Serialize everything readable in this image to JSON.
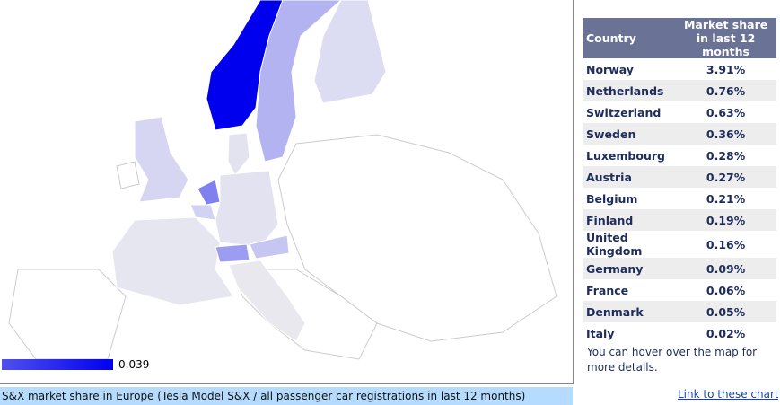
{
  "map": {
    "legend_label": "0.039",
    "caption": "S&X market share in Europe (Tesla Model S&X / all passenger car registrations in last 12 months)"
  },
  "table": {
    "header": [
      "Country",
      "Market share in last 12 months"
    ],
    "rows": [
      [
        "Norway",
        "3.91%"
      ],
      [
        "Netherlands",
        "0.76%"
      ],
      [
        "Switzerland",
        "0.63%"
      ],
      [
        "Sweden",
        "0.36%"
      ],
      [
        "Luxembourg",
        "0.28%"
      ],
      [
        "Austria",
        "0.27%"
      ],
      [
        "Belgium",
        "0.21%"
      ],
      [
        "Finland",
        "0.19%"
      ],
      [
        "United Kingdom",
        "0.16%"
      ],
      [
        "Germany",
        "0.09%"
      ],
      [
        "France",
        "0.06%"
      ],
      [
        "Denmark",
        "0.05%"
      ],
      [
        "Italy",
        "0.02%"
      ]
    ]
  },
  "note": "You can hover over the map for more details.",
  "link": "Link to these charts"
}
